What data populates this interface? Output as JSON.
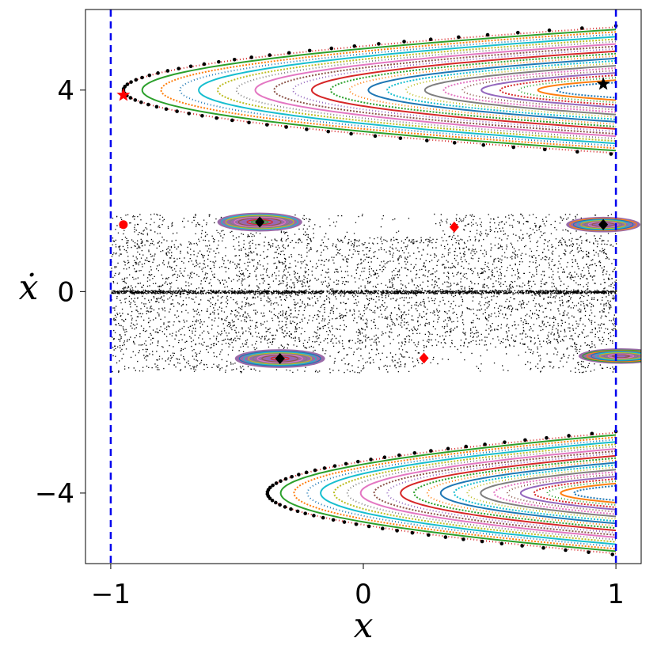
{
  "chart_data": {
    "type": "scatter",
    "title": "",
    "xlabel": "x",
    "ylabel": "ẋ",
    "xlim": [
      -1.1,
      1.1
    ],
    "ylim": [
      -5.4,
      5.6
    ],
    "xticks": [
      -1,
      0,
      1
    ],
    "xtick_labels": [
      "−1",
      "0",
      "1"
    ],
    "yticks": [
      -4,
      0,
      4
    ],
    "ytick_labels": [
      "−4",
      "0",
      "4"
    ],
    "grid": false,
    "legend": "none",
    "boundaries": [
      {
        "x": -1,
        "style": "dashed",
        "color": "#0000ee"
      },
      {
        "x": 1,
        "style": "dashed",
        "color": "#0000ee"
      }
    ],
    "upper_family": {
      "tip_x": -0.95,
      "y_center": 4.0,
      "half_height_at_x1": 1.25,
      "n_curves": 24
    },
    "lower_family": {
      "tip_x": -0.38,
      "y_center": -4.0,
      "half_height_at_x1": 1.2,
      "n_curves": 24
    },
    "islands": [
      {
        "x": -0.41,
        "y": 1.38,
        "rx": 0.16,
        "ry": 0.17
      },
      {
        "x": -0.33,
        "y": -1.33,
        "rx": 0.17,
        "ry": 0.17
      },
      {
        "x": 0.95,
        "y": 1.33,
        "rx": 0.14,
        "ry": 0.14
      },
      {
        "x": 1.02,
        "y": -1.28,
        "rx": 0.16,
        "ry": 0.14
      }
    ],
    "markers": [
      {
        "shape": "star",
        "color": "#ff0000",
        "x": -0.95,
        "y": 3.9
      },
      {
        "shape": "star",
        "color": "#000000",
        "x": 0.95,
        "y": 4.12
      },
      {
        "shape": "diamond",
        "color": "#000000",
        "x": -0.41,
        "y": 1.38
      },
      {
        "shape": "diamond",
        "color": "#000000",
        "x": -0.33,
        "y": -1.33
      },
      {
        "shape": "diamond",
        "color": "#000000",
        "x": 0.95,
        "y": 1.33
      },
      {
        "shape": "diamond",
        "color": "#ff0000",
        "x": 0.36,
        "y": 1.28
      },
      {
        "shape": "diamond",
        "color": "#ff0000",
        "x": 0.24,
        "y": -1.32
      },
      {
        "shape": "circle",
        "color": "#ff0000",
        "x": -0.95,
        "y": 1.33
      }
    ],
    "palette": [
      "#1f77b4",
      "#ff7f0e",
      "#2ca02c",
      "#d62728",
      "#9467bd",
      "#8c564b",
      "#e377c2",
      "#7f7f7f",
      "#bcbd22",
      "#17becf"
    ]
  }
}
